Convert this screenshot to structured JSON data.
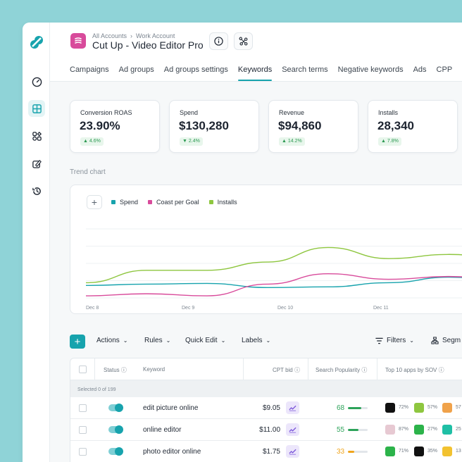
{
  "colors": {
    "accent": "#17a3ad",
    "spend": "#17a3ad",
    "coast": "#d84b9b",
    "installs": "#8ec63f"
  },
  "header": {
    "breadcrumb": [
      "All Accounts",
      "Work Account"
    ],
    "title": "Cut Up - Video Editor Pro"
  },
  "tabs": [
    {
      "label": "Campaigns",
      "active": false
    },
    {
      "label": "Ad groups",
      "active": false
    },
    {
      "label": "Ad groups settings",
      "active": false
    },
    {
      "label": "Keywords",
      "active": true
    },
    {
      "label": "Search terms",
      "active": false
    },
    {
      "label": "Negative keywords",
      "active": false
    },
    {
      "label": "Ads",
      "active": false
    },
    {
      "label": "CPP",
      "active": false
    }
  ],
  "kpis": [
    {
      "label": "Conversion ROAS",
      "value": "23.90%",
      "change": "4.6%",
      "direction": "up"
    },
    {
      "label": "Spend",
      "value": "$130,280",
      "change": "2.4%",
      "direction": "down"
    },
    {
      "label": "Revenue",
      "value": "$94,860",
      "change": "14.2%",
      "direction": "up"
    },
    {
      "label": "Installs",
      "value": "28,340",
      "change": "7.8%",
      "direction": "up"
    }
  ],
  "trend": {
    "title": "Trend chart",
    "add_label": "+",
    "legend": [
      {
        "name": "Spend",
        "color": "#17a3ad"
      },
      {
        "name": "Coast per Goal",
        "color": "#d84b9b"
      },
      {
        "name": "Installs",
        "color": "#8ec63f"
      }
    ],
    "x_labels": [
      "Dec 8",
      "Dec 9",
      "Dec 10",
      "Dec 11"
    ]
  },
  "chart_data": {
    "type": "line",
    "x": [
      0,
      0.5,
      1,
      1.5,
      2,
      2.5,
      3,
      3.5,
      4
    ],
    "series": [
      {
        "name": "Spend",
        "values": [
          18,
          20,
          21,
          15,
          16,
          22,
          30,
          25,
          27
        ]
      },
      {
        "name": "Coast per Goal",
        "values": [
          3,
          6,
          3,
          20,
          35,
          27,
          31,
          26,
          30
        ]
      },
      {
        "name": "Installs",
        "values": [
          22,
          40,
          40,
          52,
          73,
          57,
          63,
          55,
          58
        ]
      }
    ],
    "ylim": [
      0,
      100
    ],
    "grid": true,
    "legend": "top-left"
  },
  "toolbar": {
    "add_label": "+",
    "actions": "Actions",
    "rules": "Rules",
    "quick_edit": "Quick Edit",
    "labels": "Labels",
    "filters": "Filters",
    "segment": "Segm"
  },
  "table": {
    "headers": {
      "status": "Status",
      "keyword": "Keyword",
      "cpt_bid": "CPT bid",
      "popularity": "Search Popularity",
      "sov": "Top 10 apps by SOV"
    },
    "selected_text": "Selected 0 of 199",
    "rows": [
      {
        "keyword": "edit picture online",
        "bid": "$9.05",
        "popularity": "68",
        "popularity_value": 68,
        "pop_color": "#2da35a",
        "apps": [
          {
            "pct": "72%",
            "color": "#111111"
          },
          {
            "pct": "57%",
            "color": "#8ec63f"
          },
          {
            "pct": "57",
            "color": "#f0a24a"
          }
        ]
      },
      {
        "keyword": "online editor",
        "bid": "$11.00",
        "popularity": "55",
        "popularity_value": 55,
        "pop_color": "#2da35a",
        "apps": [
          {
            "pct": "87%",
            "color": "#e7c9d2"
          },
          {
            "pct": "27%",
            "color": "#2cb34a"
          },
          {
            "pct": "25",
            "color": "#1fbfa5"
          }
        ]
      },
      {
        "keyword": "photo editor online",
        "bid": "$1.75",
        "popularity": "33",
        "popularity_value": 33,
        "pop_color": "#f0a51c",
        "apps": [
          {
            "pct": "71%",
            "color": "#2cb34a"
          },
          {
            "pct": "35%",
            "color": "#111111"
          },
          {
            "pct": "13",
            "color": "#f2c230"
          }
        ]
      }
    ]
  }
}
